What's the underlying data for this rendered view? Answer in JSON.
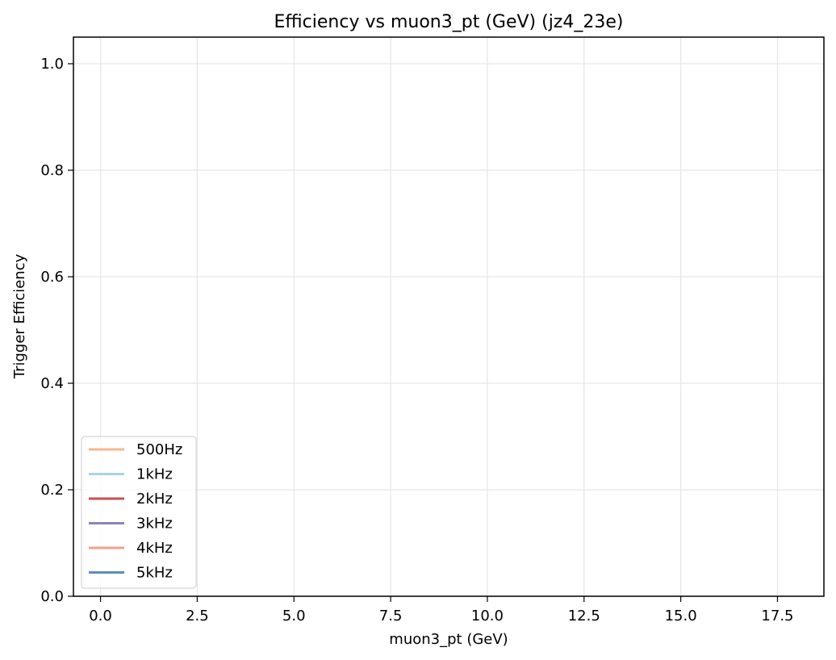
{
  "chart_data": {
    "type": "line",
    "title": "Efficiency vs muon3_pt (GeV) (jz4_23e)",
    "xlabel": "muon3_pt (GeV)",
    "ylabel": "Trigger Efficiency",
    "xlim": [
      -0.7,
      18.7
    ],
    "ylim": [
      0.0,
      1.05
    ],
    "xticks": [
      0.0,
      2.5,
      5.0,
      7.5,
      10.0,
      12.5,
      15.0,
      17.5
    ],
    "xtick_labels": [
      "0.0",
      "2.5",
      "5.0",
      "7.5",
      "10.0",
      "12.5",
      "15.0",
      "17.5"
    ],
    "yticks": [
      0.0,
      0.2,
      0.4,
      0.6,
      0.8,
      1.0
    ],
    "ytick_labels": [
      "0.0",
      "0.2",
      "0.4",
      "0.6",
      "0.8",
      "1.0"
    ],
    "grid": true,
    "legend_position": "lower-left",
    "series": [
      {
        "name": "500Hz",
        "color": "#f4b98b",
        "x": [],
        "y": []
      },
      {
        "name": "1kHz",
        "color": "#a8d5e0",
        "x": [],
        "y": []
      },
      {
        "name": "2kHz",
        "color": "#c9504d",
        "x": [],
        "y": []
      },
      {
        "name": "3kHz",
        "color": "#8a86b8",
        "x": [],
        "y": []
      },
      {
        "name": "4kHz",
        "color": "#f2a08d",
        "x": [],
        "y": []
      },
      {
        "name": "5kHz",
        "color": "#5b8fbd",
        "x": [],
        "y": []
      }
    ]
  }
}
